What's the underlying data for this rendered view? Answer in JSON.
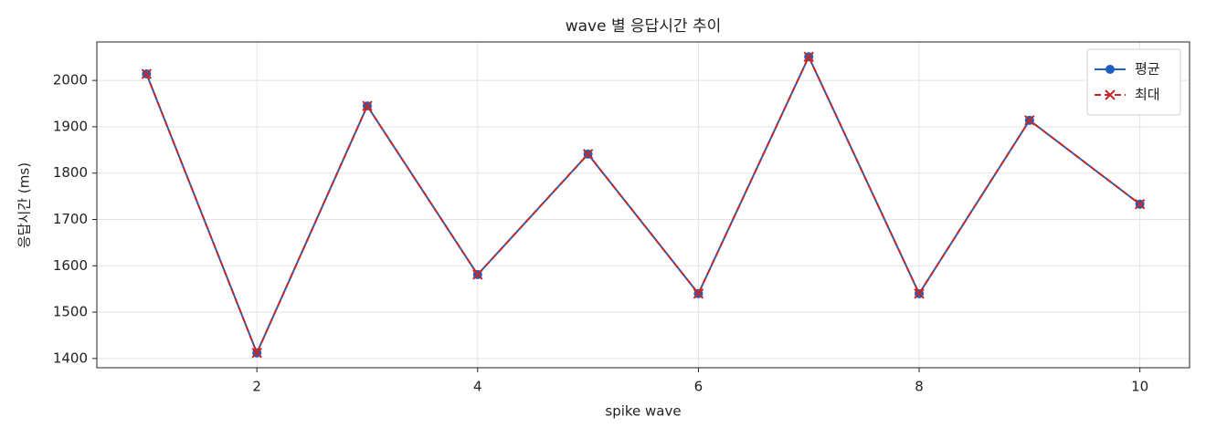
{
  "chart_data": {
    "type": "line",
    "title": "wave 별 응답시간 추이",
    "xlabel": "spike wave",
    "ylabel": "응답시간 (ms)",
    "x": [
      1,
      2,
      3,
      4,
      5,
      6,
      7,
      8,
      9,
      10
    ],
    "series": [
      {
        "name": "평균",
        "color": "#1f5fbf",
        "linestyle": "solid",
        "marker": "o",
        "values": [
          2014,
          1412,
          1945,
          1581,
          1841,
          1540,
          2051,
          1540,
          1914,
          1733
        ]
      },
      {
        "name": "최대",
        "color": "#c62828",
        "linestyle": "dashed",
        "marker": "x",
        "values": [
          2014,
          1412,
          1945,
          1581,
          1841,
          1540,
          2051,
          1540,
          1914,
          1733
        ]
      }
    ],
    "xlim": [
      0.55,
      10.45
    ],
    "xticks": [
      2,
      4,
      6,
      8,
      10
    ],
    "ylim": [
      1380,
      2083
    ],
    "yticks": [
      1400,
      1500,
      1600,
      1700,
      1800,
      1900,
      2000
    ],
    "grid": true,
    "legend": "upper right"
  }
}
